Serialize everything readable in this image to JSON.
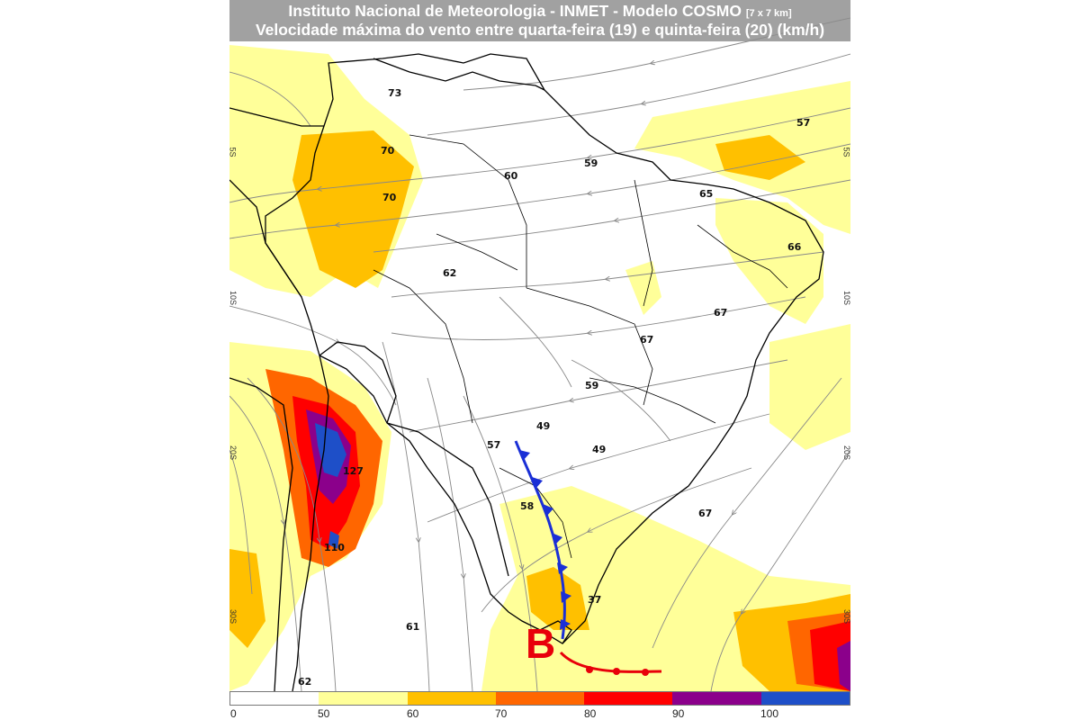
{
  "title": {
    "line1": "Instituto Nacional de Meteorologia - INMET - Modelo COSMO",
    "line1_resolution": "[7 x 7 km]",
    "line2": "Velocidade máxima do vento entre quarta-feira (19) e quinta-feira (20) (km/h)"
  },
  "lat_ticks_left": [
    "5S",
    "10S",
    "20S",
    "30S"
  ],
  "lat_ticks_right": [
    "5S",
    "10S",
    "20S",
    "30S"
  ],
  "value_labels": [
    "73",
    "70",
    "70",
    "60",
    "59",
    "57",
    "65",
    "66",
    "62",
    "67",
    "67",
    "59",
    "49",
    "49",
    "57",
    "127",
    "58",
    "110",
    "67",
    "37",
    "61",
    "62"
  ],
  "low_pressure_marker": "B",
  "legend": {
    "colors": [
      "#ffffff",
      "#ffff99",
      "#ffc000",
      "#ff6600",
      "#ff0000",
      "#8b008b",
      "#1e4fc8"
    ],
    "labels": [
      "0",
      "50",
      "60",
      "70",
      "80",
      "90",
      "100"
    ]
  },
  "colors": {
    "cold_front": "#1a2fd6",
    "warm_front": "#e8000a",
    "title_background": "#8c8c8c",
    "borders": "#000000",
    "streamlines": "#888888"
  }
}
